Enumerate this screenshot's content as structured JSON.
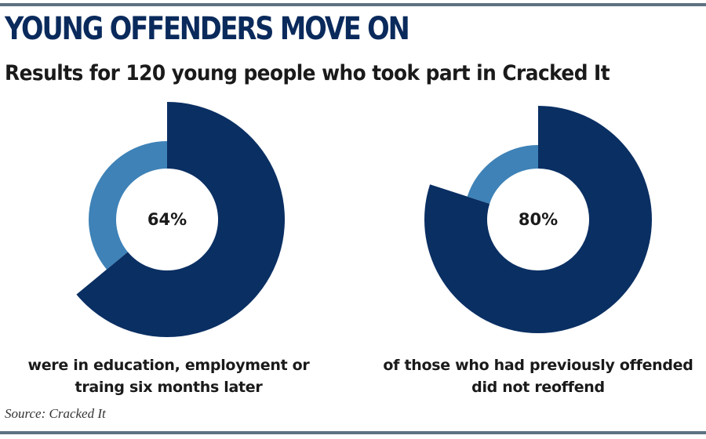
{
  "header": {
    "title": "YOUNG OFFENDERS MOVE ON",
    "subtitle": "Results for 120 young people who took part in Cracked It"
  },
  "footer": {
    "source": "Source: Cracked It"
  },
  "colors": {
    "primary": "#0a2f63",
    "secondary": "#3e82b7",
    "rule": "#5d7282"
  },
  "chart_data": [
    {
      "type": "pie",
      "variant": "donut",
      "value_label": "64%",
      "caption": [
        "were in education, employment or",
        "traing six months later"
      ],
      "slices": [
        {
          "value": 64,
          "color": "#0a2f63"
        },
        {
          "value": 36,
          "color": "#3e82b7"
        }
      ]
    },
    {
      "type": "pie",
      "variant": "donut",
      "value_label": "80%",
      "caption": [
        "of those who had previously offended",
        "did not reoffend"
      ],
      "slices": [
        {
          "value": 80,
          "color": "#0a2f63"
        },
        {
          "value": 20,
          "color": "#3e82b7"
        }
      ]
    }
  ]
}
